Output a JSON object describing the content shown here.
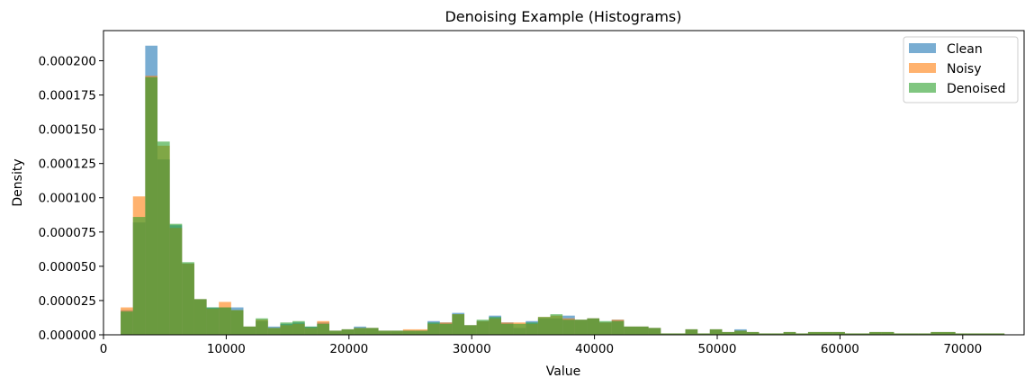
{
  "chart_data": {
    "type": "histogram",
    "title": "Denoising Example (Histograms)",
    "xlabel": "Value",
    "ylabel": "Density",
    "xlim": [
      0,
      75000
    ],
    "ylim": [
      0,
      0.000222
    ],
    "x_ticks": [
      0,
      10000,
      20000,
      30000,
      40000,
      50000,
      60000,
      70000
    ],
    "x_tick_labels": [
      "0",
      "10000",
      "20000",
      "30000",
      "40000",
      "50000",
      "60000",
      "70000"
    ],
    "y_ticks": [
      0,
      2.5e-05,
      5e-05,
      7.5e-05,
      0.0001,
      0.000125,
      0.00015,
      0.000175,
      0.0002
    ],
    "y_tick_labels": [
      "0.000000",
      "0.000025",
      "0.000050",
      "0.000075",
      "0.000100",
      "0.000125",
      "0.000150",
      "0.000175",
      "0.000200"
    ],
    "legend_position": "top-right",
    "bin_start": 1400,
    "bin_width": 1000,
    "series": [
      {
        "name": "Clean",
        "color": "#1f77b4",
        "values": [
          1.8e-05,
          8.2e-05,
          0.000211,
          0.000128,
          8e-05,
          5.2e-05,
          2.6e-05,
          2e-05,
          2e-05,
          2e-05,
          6e-06,
          1e-05,
          6e-06,
          8e-06,
          9e-06,
          6e-06,
          9e-06,
          3e-06,
          4e-06,
          6e-06,
          5e-06,
          3e-06,
          3e-06,
          3e-06,
          3e-06,
          1e-05,
          9e-06,
          1.6e-05,
          7e-06,
          1e-05,
          1.4e-05,
          9e-06,
          5e-06,
          1e-05,
          1.2e-05,
          1.2e-05,
          1.4e-05,
          1.1e-05,
          1.2e-05,
          9e-06,
          1.1e-05,
          6e-06,
          6e-06,
          5e-06,
          1e-06,
          1e-06,
          4e-06,
          1e-06,
          4e-06,
          2e-06,
          4e-06,
          2e-06,
          1e-06,
          1e-06,
          2e-06,
          1e-06,
          2e-06,
          2e-06,
          2e-06,
          1e-06,
          1e-06,
          2e-06,
          2e-06,
          1e-06,
          1e-06,
          1e-06,
          2e-06,
          2e-06,
          1e-06,
          1e-06,
          1e-06,
          1e-06
        ]
      },
      {
        "name": "Noisy",
        "color": "#ff7f0e",
        "values": [
          2e-05,
          0.000101,
          0.000189,
          0.000138,
          7.8e-05,
          5.2e-05,
          2.6e-05,
          1.9e-05,
          2.4e-05,
          1.8e-05,
          6e-06,
          1.1e-05,
          5e-06,
          7e-06,
          8e-06,
          5e-06,
          1e-05,
          3e-06,
          4e-06,
          5e-06,
          5e-06,
          3e-06,
          3e-06,
          4e-06,
          4e-06,
          8e-06,
          9e-06,
          1.5e-05,
          7e-06,
          1e-05,
          1.2e-05,
          9e-06,
          9e-06,
          8e-06,
          1.3e-05,
          1.4e-05,
          1.2e-05,
          1.1e-05,
          1.2e-05,
          9e-06,
          1.1e-05,
          6e-06,
          6e-06,
          5e-06,
          1e-06,
          1e-06,
          4e-06,
          1e-06,
          4e-06,
          2e-06,
          3e-06,
          2e-06,
          1e-06,
          1e-06,
          2e-06,
          1e-06,
          2e-06,
          2e-06,
          2e-06,
          1e-06,
          1e-06,
          2e-06,
          2e-06,
          1e-06,
          1e-06,
          1e-06,
          2e-06,
          2e-06,
          1e-06,
          1e-06,
          1e-06,
          1e-06
        ]
      },
      {
        "name": "Denoised",
        "color": "#2ca02c",
        "values": [
          1.7e-05,
          8.6e-05,
          0.000188,
          0.000141,
          8.1e-05,
          5.3e-05,
          2.6e-05,
          2e-05,
          2e-05,
          1.8e-05,
          6e-06,
          1.2e-05,
          5e-06,
          9e-06,
          1e-05,
          6e-06,
          8e-06,
          3e-06,
          4e-06,
          5e-06,
          5e-06,
          3e-06,
          3e-06,
          3e-06,
          3e-06,
          9e-06,
          8e-06,
          1.5e-05,
          7e-06,
          1.1e-05,
          1.3e-05,
          8e-06,
          8e-06,
          9e-06,
          1.3e-05,
          1.5e-05,
          1.1e-05,
          1.1e-05,
          1.2e-05,
          1e-05,
          1e-05,
          6e-06,
          6e-06,
          5e-06,
          1e-06,
          1e-06,
          4e-06,
          1e-06,
          4e-06,
          2e-06,
          3e-06,
          2e-06,
          1e-06,
          1e-06,
          2e-06,
          1e-06,
          2e-06,
          2e-06,
          2e-06,
          1e-06,
          1e-06,
          2e-06,
          2e-06,
          1e-06,
          1e-06,
          1e-06,
          2e-06,
          2e-06,
          1e-06,
          1e-06,
          1e-06,
          1e-06
        ]
      }
    ]
  }
}
